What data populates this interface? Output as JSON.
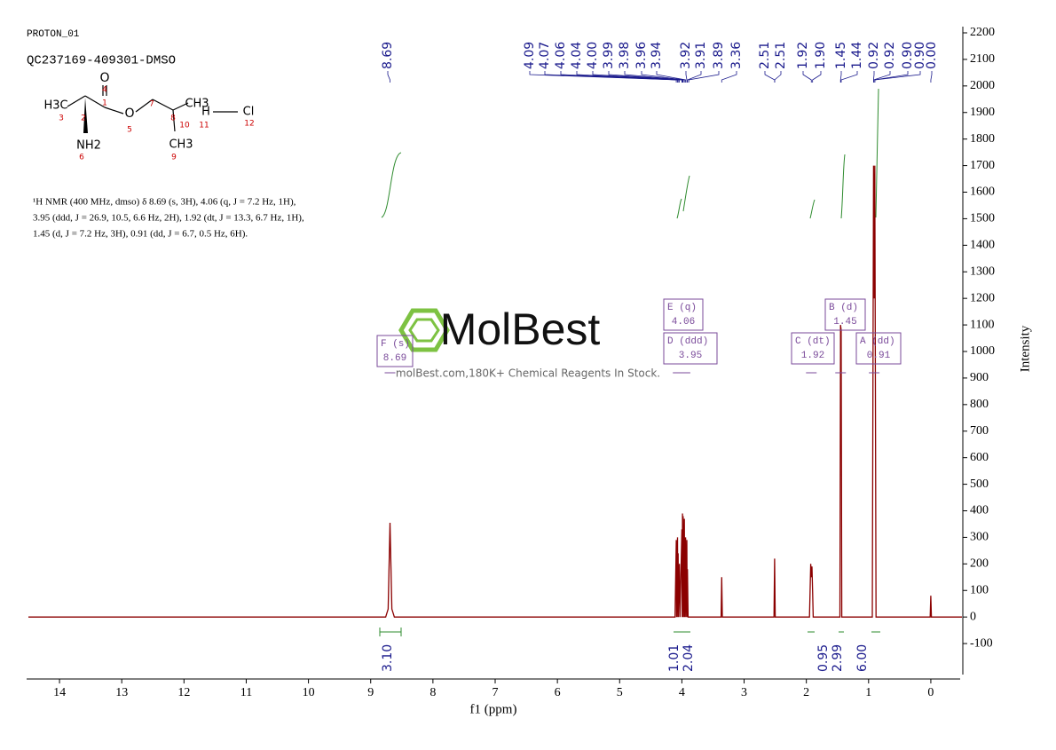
{
  "chart_data": {
    "type": "line",
    "header": [
      "PROTON_01",
      "QC237169-409301-DMSO"
    ],
    "structure_labels": [
      "O",
      "4",
      "H3C",
      "3",
      "2",
      "1",
      "O",
      "5",
      "7",
      "8",
      "CH3",
      "10",
      "H",
      "11",
      "Cl",
      "12",
      "NH2",
      "6",
      "CH3",
      "9"
    ],
    "nmr_text": [
      "¹H NMR (400 MHz, dmso) δ 8.69 (s, 3H), 4.06 (q, J = 7.2 Hz, 1H),",
      "3.95 (ddd, J = 26.9, 10.5, 6.6 Hz, 2H), 1.92 (dt, J = 13.3, 6.7 Hz, 1H),",
      "1.45 (d, J = 7.2 Hz, 3H), 0.91 (dd, J = 6.7, 0.5 Hz, 6H)."
    ],
    "watermark": "MolBest",
    "watermark_subtitle": "molBest.com,180K+ Chemical Reagents In Stock.",
    "x_label": "f1 (ppm)",
    "y_label": "Intensity",
    "xlim": [
      14.5,
      -0.5
    ],
    "ylim": [
      -200,
      2200
    ],
    "xticks": [
      0,
      1,
      2,
      3,
      4,
      5,
      6,
      7,
      8,
      9,
      10,
      11,
      12,
      13,
      14
    ],
    "yticks": [
      -100,
      0,
      100,
      200,
      300,
      400,
      500,
      600,
      700,
      800,
      900,
      1000,
      1100,
      1200,
      1300,
      1400,
      1500,
      1600,
      1700,
      1800,
      1900,
      2000,
      2100,
      2200
    ],
    "series": [
      {
        "name": "spectrum",
        "color": "#8b0000",
        "x": [
          14.5,
          8.76,
          8.72,
          8.69,
          8.66,
          8.62,
          4.11,
          4.09,
          4.085,
          4.07,
          4.065,
          4.06,
          4.055,
          4.04,
          4.03,
          4.0,
          3.995,
          3.99,
          3.985,
          3.98,
          3.975,
          3.96,
          3.955,
          3.94,
          3.935,
          3.92,
          3.915,
          3.91,
          3.9,
          3.37,
          3.36,
          3.35,
          2.52,
          2.51,
          2.5,
          1.95,
          1.93,
          1.92,
          1.91,
          1.9,
          1.89,
          1.46,
          1.45,
          1.44,
          1.43,
          0.94,
          0.92,
          0.91,
          0.9,
          0.88,
          0.01,
          0.0,
          -0.01,
          -0.5
        ],
        "values": [
          0,
          0,
          30,
          355,
          30,
          0,
          0,
          290,
          0,
          300,
          0,
          240,
          0,
          200,
          0,
          330,
          0,
          390,
          0,
          380,
          0,
          370,
          0,
          300,
          0,
          290,
          0,
          180,
          0,
          0,
          150,
          0,
          0,
          220,
          0,
          0,
          200,
          150,
          190,
          100,
          0,
          0,
          1100,
          1080,
          0,
          0,
          1700,
          1200,
          1700,
          0,
          0,
          80,
          0,
          0
        ]
      }
    ],
    "peak_labels": [
      "8.69",
      "4.09",
      "4.07",
      "4.06",
      "4.04",
      "4.00",
      "3.99",
      "3.98",
      "3.96",
      "3.94",
      "3.92",
      "3.91",
      "3.89",
      "3.36",
      "2.51",
      "2.51",
      "1.92",
      "1.90",
      "1.45",
      "1.44",
      "0.92",
      "0.92",
      "0.90",
      "0.90",
      "0.00"
    ],
    "integral_labels": [
      "3.10",
      "1.01",
      "2.04",
      "0.95",
      "2.99",
      "6.00"
    ],
    "multiplets": [
      {
        "label": "F (s)",
        "shift": "8.69"
      },
      {
        "label": "E (q)",
        "shift": "4.06"
      },
      {
        "label": "D (ddd)",
        "shift": "3.95"
      },
      {
        "label": "C (dt)",
        "shift": "1.92"
      },
      {
        "label": "B (d)",
        "shift": "1.45"
      },
      {
        "label": "A (dd)",
        "shift": "0.91"
      }
    ]
  }
}
